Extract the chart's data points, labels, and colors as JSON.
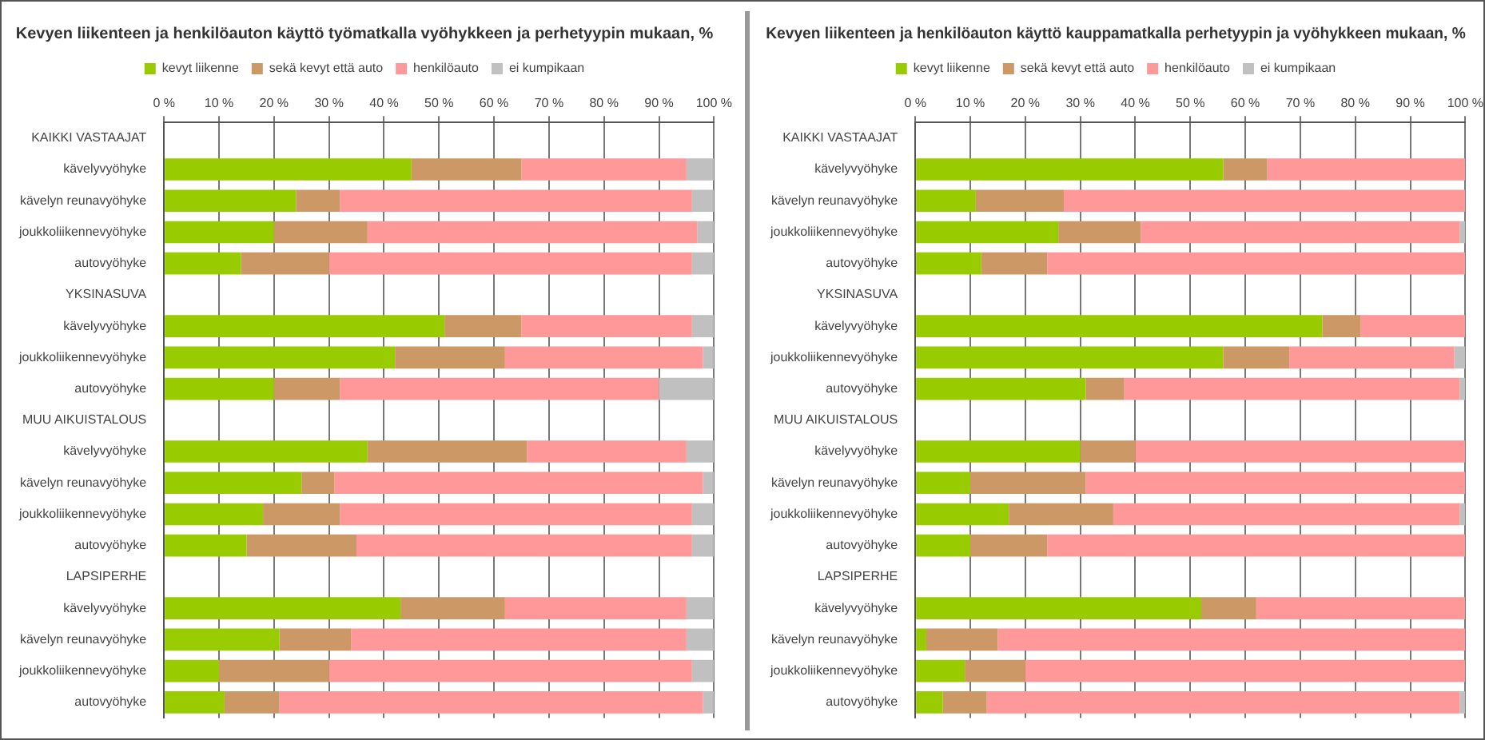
{
  "chart_data": [
    {
      "type": "bar",
      "orientation": "horizontal",
      "stacked": true,
      "title": "Kevyen liikenteen ja henkilöauton käyttö työmatkalla vyöhykkeen ja perhetyypin mukaan, %",
      "categories": [
        "KAIKKI VASTAAJAT",
        "kävelyvyöhyke",
        "kävelyn reunavyöhyke",
        "joukkoliikennevyöhyke",
        "autovyöhyke",
        "YKSINASUVA",
        "kävelyvyöhyke",
        "joukkoliikennevyöhyke",
        "autovyöhyke",
        "MUU AIKUISTALOUS",
        "kävelyvyöhyke",
        "kävelyn reunavyöhyke",
        "joukkoliikennevyöhyke",
        "autovyöhyke",
        "LAPSIPERHE",
        "kävelyvyöhyke",
        "kävelyn reunavyöhyke",
        "joukkoliikennevyöhyke",
        "autovyöhyke"
      ],
      "series": [
        {
          "name": "kevyt liikenne",
          "color": "#99cc00",
          "values": [
            null,
            45,
            24,
            20,
            14,
            null,
            51,
            42,
            20,
            null,
            37,
            25,
            18,
            15,
            null,
            43,
            21,
            10,
            11
          ]
        },
        {
          "name": "sekä kevyt että auto",
          "color": "#cc9966",
          "values": [
            null,
            20,
            8,
            17,
            16,
            null,
            14,
            20,
            12,
            null,
            29,
            6,
            14,
            20,
            null,
            19,
            13,
            20,
            10
          ]
        },
        {
          "name": "henkilöauto",
          "color": "#ff9999",
          "values": [
            null,
            30,
            64,
            60,
            66,
            null,
            31,
            36,
            58,
            null,
            29,
            67,
            64,
            61,
            null,
            33,
            61,
            66,
            77
          ]
        },
        {
          "name": "ei kumpikaan",
          "color": "#c0c0c0",
          "values": [
            null,
            5,
            4,
            3,
            4,
            null,
            4,
            2,
            10,
            null,
            5,
            2,
            4,
            4,
            null,
            5,
            5,
            4,
            2
          ]
        }
      ],
      "xlim": [
        0,
        100
      ],
      "xticks": [
        {
          "value": 0,
          "label": "0 %"
        },
        {
          "value": 10,
          "label": "10 %"
        },
        {
          "value": 20,
          "label": "20 %"
        },
        {
          "value": 30,
          "label": "30 %"
        },
        {
          "value": 40,
          "label": "40 %"
        },
        {
          "value": 50,
          "label": "50 %"
        },
        {
          "value": 60,
          "label": "60 %"
        },
        {
          "value": 70,
          "label": "70 %"
        },
        {
          "value": 80,
          "label": "80 %"
        },
        {
          "value": 90,
          "label": "90 %"
        },
        {
          "value": 100,
          "label": "100 %"
        }
      ],
      "grid": "x",
      "legend": "top"
    },
    {
      "type": "bar",
      "orientation": "horizontal",
      "stacked": true,
      "title": "Kevyen liikenteen ja henkilöauton käyttö kauppamatkalla perhetyypin ja vyöhykkeen mukaan, %",
      "categories": [
        "KAIKKI VASTAAJAT",
        "kävelyvyöhyke",
        "kävelyn reunavyöhyke",
        "joukkoliikennevyöhyke",
        "autovyöhyke",
        "YKSINASUVA",
        "kävelyvyöhyke",
        "joukkoliikennevyöhyke",
        "autovyöhyke",
        "MUU AIKUISTALOUS",
        "kävelyvyöhyke",
        "kävelyn reunavyöhyke",
        "joukkoliikennevyöhyke",
        "autovyöhyke",
        "LAPSIPERHE",
        "kävelyvyöhyke",
        "kävelyn reunavyöhyke",
        "joukkoliikennevyöhyke",
        "autovyöhyke"
      ],
      "series": [
        {
          "name": "kevyt liikenne",
          "color": "#99cc00",
          "values": [
            null,
            56,
            11,
            26,
            12,
            null,
            74,
            56,
            31,
            null,
            30,
            10,
            17,
            10,
            null,
            52,
            2,
            9,
            5
          ]
        },
        {
          "name": "sekä kevyt että auto",
          "color": "#cc9966",
          "values": [
            null,
            8,
            16,
            15,
            12,
            null,
            7,
            12,
            7,
            null,
            10,
            21,
            19,
            14,
            null,
            10,
            13,
            11,
            8
          ]
        },
        {
          "name": "henkilöauto",
          "color": "#ff9999",
          "values": [
            null,
            36,
            73,
            58,
            76,
            null,
            19,
            30,
            61,
            null,
            60,
            69,
            63,
            76,
            null,
            38,
            85,
            80,
            86
          ]
        },
        {
          "name": "ei kumpikaan",
          "color": "#c0c0c0",
          "values": [
            null,
            0,
            0,
            1,
            0,
            null,
            0,
            2,
            1,
            null,
            0,
            0,
            1,
            0,
            null,
            0,
            0,
            0,
            1
          ]
        }
      ],
      "xlim": [
        0,
        100
      ],
      "xticks": [
        {
          "value": 0,
          "label": "0 %"
        },
        {
          "value": 10,
          "label": "10 %"
        },
        {
          "value": 20,
          "label": "20 %"
        },
        {
          "value": 30,
          "label": "30 %"
        },
        {
          "value": 40,
          "label": "40 %"
        },
        {
          "value": 50,
          "label": "50 %"
        },
        {
          "value": 60,
          "label": "60 %"
        },
        {
          "value": 70,
          "label": "70 %"
        },
        {
          "value": 80,
          "label": "80 %"
        },
        {
          "value": 90,
          "label": "90 %"
        },
        {
          "value": 100,
          "label": "100 %"
        }
      ],
      "grid": "x",
      "legend": "top"
    }
  ]
}
